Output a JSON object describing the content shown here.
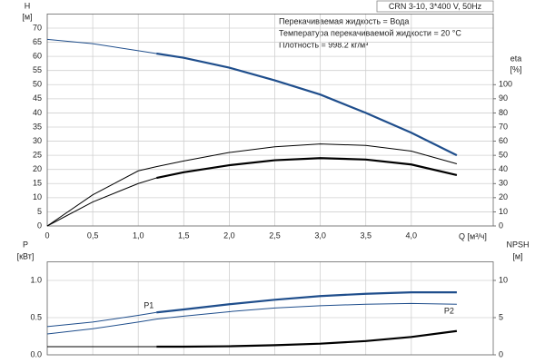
{
  "chart_data": [
    {
      "type": "line",
      "title": "CRN 3-10, 3*400 V, 50Hz",
      "annotations": [
        "Перекачиваемая жидкость = Вода",
        "Температура перекачиваемой жидкости = 20 °C",
        "Плотность = 998.2 кг/м³"
      ],
      "ylabel": "H",
      "yunit": "[м]",
      "y2label": "eta",
      "y2unit": "[%]",
      "xlabel": "Q [м³/ч]",
      "grid": true,
      "xlim": [
        0,
        4.9
      ],
      "xticks": [
        0,
        {
          "value": 0.5,
          "label": "0,5"
        },
        {
          "value": 1.0,
          "label": "1,0"
        },
        {
          "value": 1.5,
          "label": "1,5"
        },
        {
          "value": 2.0,
          "label": "2,0"
        },
        {
          "value": 2.5,
          "label": "2,5"
        },
        {
          "value": 3.0,
          "label": "3,0"
        },
        {
          "value": 3.5,
          "label": "3,5"
        },
        {
          "value": 4.0,
          "label": "4,0"
        }
      ],
      "ylim": [
        0,
        75
      ],
      "yticks": [
        0,
        5,
        10,
        15,
        20,
        25,
        30,
        35,
        40,
        45,
        50,
        55,
        60,
        65,
        70
      ],
      "y2lim": [
        0,
        150
      ],
      "y2ticks": [
        0,
        10,
        20,
        30,
        40,
        50,
        60,
        70,
        80,
        90,
        100
      ],
      "x": [
        0,
        0.5,
        1.0,
        1.2,
        1.5,
        2.0,
        2.5,
        3.0,
        3.5,
        4.0,
        4.5
      ],
      "series": [
        {
          "color": "#1f4e8c",
          "width": 1,
          "axis": "y",
          "values": [
            66,
            64.5,
            62,
            61,
            null,
            null,
            null,
            null,
            null,
            null,
            null
          ]
        },
        {
          "color": "#1f4e8c",
          "width": 2.2,
          "axis": "y",
          "values": [
            null,
            null,
            null,
            61,
            59.5,
            56,
            51.5,
            46.5,
            40,
            33,
            25
          ]
        },
        {
          "color": "#000000",
          "width": 1,
          "axis": "y2",
          "values": [
            0,
            22,
            39,
            42,
            46,
            52,
            56,
            58,
            57,
            53,
            44
          ]
        },
        {
          "color": "#000000",
          "width": 1,
          "axis": "y2",
          "values": [
            0,
            17,
            30,
            34,
            null,
            null,
            null,
            null,
            null,
            null,
            null
          ]
        },
        {
          "color": "#000000",
          "width": 2.2,
          "axis": "y2",
          "values": [
            null,
            null,
            null,
            34,
            38,
            43,
            46.5,
            48,
            47,
            43.5,
            36
          ]
        }
      ]
    },
    {
      "type": "line",
      "ylabel": "P",
      "yunit": "[кВт]",
      "y2label": "NPSH",
      "y2unit": "[м]",
      "grid": true,
      "xlim": [
        0,
        4.9
      ],
      "xticks": [
        0,
        0.5,
        1.0,
        1.5,
        2.0,
        2.5,
        3.0,
        3.5,
        4.0
      ],
      "ylim": [
        0,
        1.25
      ],
      "yticks": [
        {
          "value": 0,
          "label": "0.0"
        },
        0.5,
        {
          "value": 1.0,
          "label": "1.0"
        }
      ],
      "y2lim": [
        0,
        12.5
      ],
      "y2ticks": [
        0,
        5,
        10
      ],
      "x": [
        0,
        0.5,
        1.0,
        1.2,
        1.5,
        2.0,
        2.5,
        3.0,
        3.5,
        4.0,
        4.5
      ],
      "series": [
        {
          "name": "P1",
          "color": "#1f4e8c",
          "width": 1,
          "axis": "y",
          "values": [
            0.38,
            0.44,
            0.53,
            0.57,
            null,
            null,
            null,
            null,
            null,
            null,
            null
          ]
        },
        {
          "color": "#1f4e8c",
          "width": 2.2,
          "axis": "y",
          "values": [
            null,
            null,
            null,
            0.57,
            0.61,
            0.68,
            0.74,
            0.79,
            0.82,
            0.84,
            0.84
          ]
        },
        {
          "name": "P2",
          "color": "#1f4e8c",
          "width": 1,
          "axis": "y",
          "values": [
            0.28,
            0.35,
            0.44,
            0.48,
            0.52,
            0.58,
            0.63,
            0.66,
            0.68,
            0.69,
            0.68
          ]
        },
        {
          "color": "#000000",
          "width": 1,
          "axis": "y2",
          "values": [
            1.1,
            1.1,
            1.1,
            1.1,
            null,
            null,
            null,
            null,
            null,
            null,
            null
          ]
        },
        {
          "color": "#000000",
          "width": 2.2,
          "axis": "y2",
          "values": [
            null,
            null,
            null,
            1.1,
            1.1,
            1.15,
            1.3,
            1.5,
            1.85,
            2.4,
            3.2
          ]
        }
      ]
    }
  ]
}
